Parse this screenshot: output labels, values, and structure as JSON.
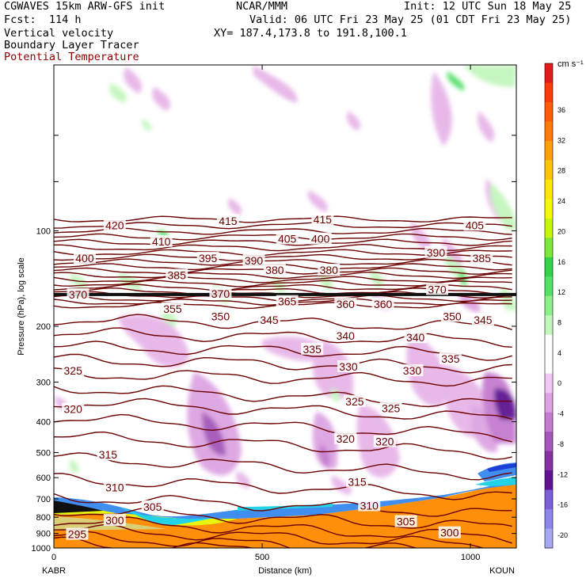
{
  "header": {
    "model": "CGWAVES 15km ARW-GFS init",
    "org": "NCAR/MMM",
    "init": "Init: 12 UTC Sun 18 May 25",
    "fcst": "Fcst:  114 h",
    "valid": "Valid: 06 UTC Fri 23 May 25 (01 CDT Fri 23 May 25)",
    "field1": "Vertical velocity",
    "field2": "Boundary Layer Tracer",
    "field3": "Potential Temperature",
    "xy": "XY= 187.4,173.8 to 191.8,100.1"
  },
  "colors": {
    "theta_contour": "#6b0000",
    "header_field3": "#8b0000"
  },
  "chart_data": {
    "type": "heatmap",
    "xlabel": "Distance (km)",
    "ylabel": "Pressure (hPa), log scale",
    "xlim": [
      0,
      1110
    ],
    "ylim": [
      1000,
      30
    ],
    "x_ticks": [
      0,
      500,
      1000
    ],
    "y_ticks": [
      100,
      200,
      300,
      400,
      500,
      600,
      700,
      800,
      900,
      1000
    ],
    "start_label": "KABR",
    "end_label": "KOUN",
    "colorbar": {
      "unit": "cm s⁻¹",
      "ticks": [
        36,
        32,
        28,
        24,
        20,
        16,
        12,
        8,
        4,
        0,
        -4,
        -8,
        -12,
        -16,
        -20
      ],
      "colors": [
        "#e31a1c",
        "#fb3a0b",
        "#fd5a0a",
        "#fd7a0a",
        "#fda00a",
        "#fdc40a",
        "#fde60a",
        "#f4f80a",
        "#c4f50a",
        "#7ee83a",
        "#33d24a",
        "#55e06a",
        "#8ef08c",
        "#c2f6bd",
        "#ffffff",
        "#ffffff",
        "#f1c8f1",
        "#dda4e2",
        "#c47ccf",
        "#a357b9",
        "#8531a4",
        "#5f1592",
        "#7c5fd6",
        "#8a86ea",
        "#a6a8f2"
      ]
    },
    "theta_labels": [
      {
        "value": 420,
        "x": 146,
        "p": 96
      },
      {
        "value": 415,
        "x": 418,
        "p": 93
      },
      {
        "value": 415,
        "x": 645,
        "p": 92
      },
      {
        "value": 410,
        "x": 258,
        "p": 108
      },
      {
        "value": 405,
        "x": 560,
        "p": 106
      },
      {
        "value": 405,
        "x": 1010,
        "p": 96
      },
      {
        "value": 400,
        "x": 74,
        "p": 122
      },
      {
        "value": 400,
        "x": 640,
        "p": 106
      },
      {
        "value": 395,
        "x": 370,
        "p": 122
      },
      {
        "value": 390,
        "x": 480,
        "p": 124
      },
      {
        "value": 390,
        "x": 917,
        "p": 117
      },
      {
        "value": 385,
        "x": 295,
        "p": 138
      },
      {
        "value": 385,
        "x": 1027,
        "p": 122
      },
      {
        "value": 380,
        "x": 530,
        "p": 133
      },
      {
        "value": 380,
        "x": 660,
        "p": 133
      },
      {
        "value": 370,
        "x": 58,
        "p": 159
      },
      {
        "value": 370,
        "x": 400,
        "p": 158
      },
      {
        "value": 370,
        "x": 920,
        "p": 153
      },
      {
        "value": 365,
        "x": 560,
        "p": 167
      },
      {
        "value": 360,
        "x": 700,
        "p": 170
      },
      {
        "value": 360,
        "x": 790,
        "p": 170
      },
      {
        "value": 355,
        "x": 285,
        "p": 176
      },
      {
        "value": 350,
        "x": 400,
        "p": 186
      },
      {
        "value": 350,
        "x": 956,
        "p": 186
      },
      {
        "value": 345,
        "x": 517,
        "p": 191
      },
      {
        "value": 345,
        "x": 1030,
        "p": 191
      },
      {
        "value": 340,
        "x": 700,
        "p": 214
      },
      {
        "value": 340,
        "x": 868,
        "p": 217
      },
      {
        "value": 335,
        "x": 620,
        "p": 236
      },
      {
        "value": 335,
        "x": 952,
        "p": 253
      },
      {
        "value": 330,
        "x": 707,
        "p": 268
      },
      {
        "value": 330,
        "x": 860,
        "p": 276
      },
      {
        "value": 325,
        "x": 46,
        "p": 276
      },
      {
        "value": 325,
        "x": 722,
        "p": 345
      },
      {
        "value": 325,
        "x": 809,
        "p": 363
      },
      {
        "value": 320,
        "x": 46,
        "p": 365
      },
      {
        "value": 320,
        "x": 700,
        "p": 452
      },
      {
        "value": 320,
        "x": 794,
        "p": 462
      },
      {
        "value": 315,
        "x": 130,
        "p": 508
      },
      {
        "value": 315,
        "x": 728,
        "p": 618
      },
      {
        "value": 310,
        "x": 146,
        "p": 644
      },
      {
        "value": 310,
        "x": 757,
        "p": 735
      },
      {
        "value": 305,
        "x": 237,
        "p": 741
      },
      {
        "value": 305,
        "x": 845,
        "p": 825
      },
      {
        "value": 300,
        "x": 146,
        "p": 818
      },
      {
        "value": 300,
        "x": 950,
        "p": 895
      },
      {
        "value": 295,
        "x": 56,
        "p": 905
      }
    ]
  }
}
